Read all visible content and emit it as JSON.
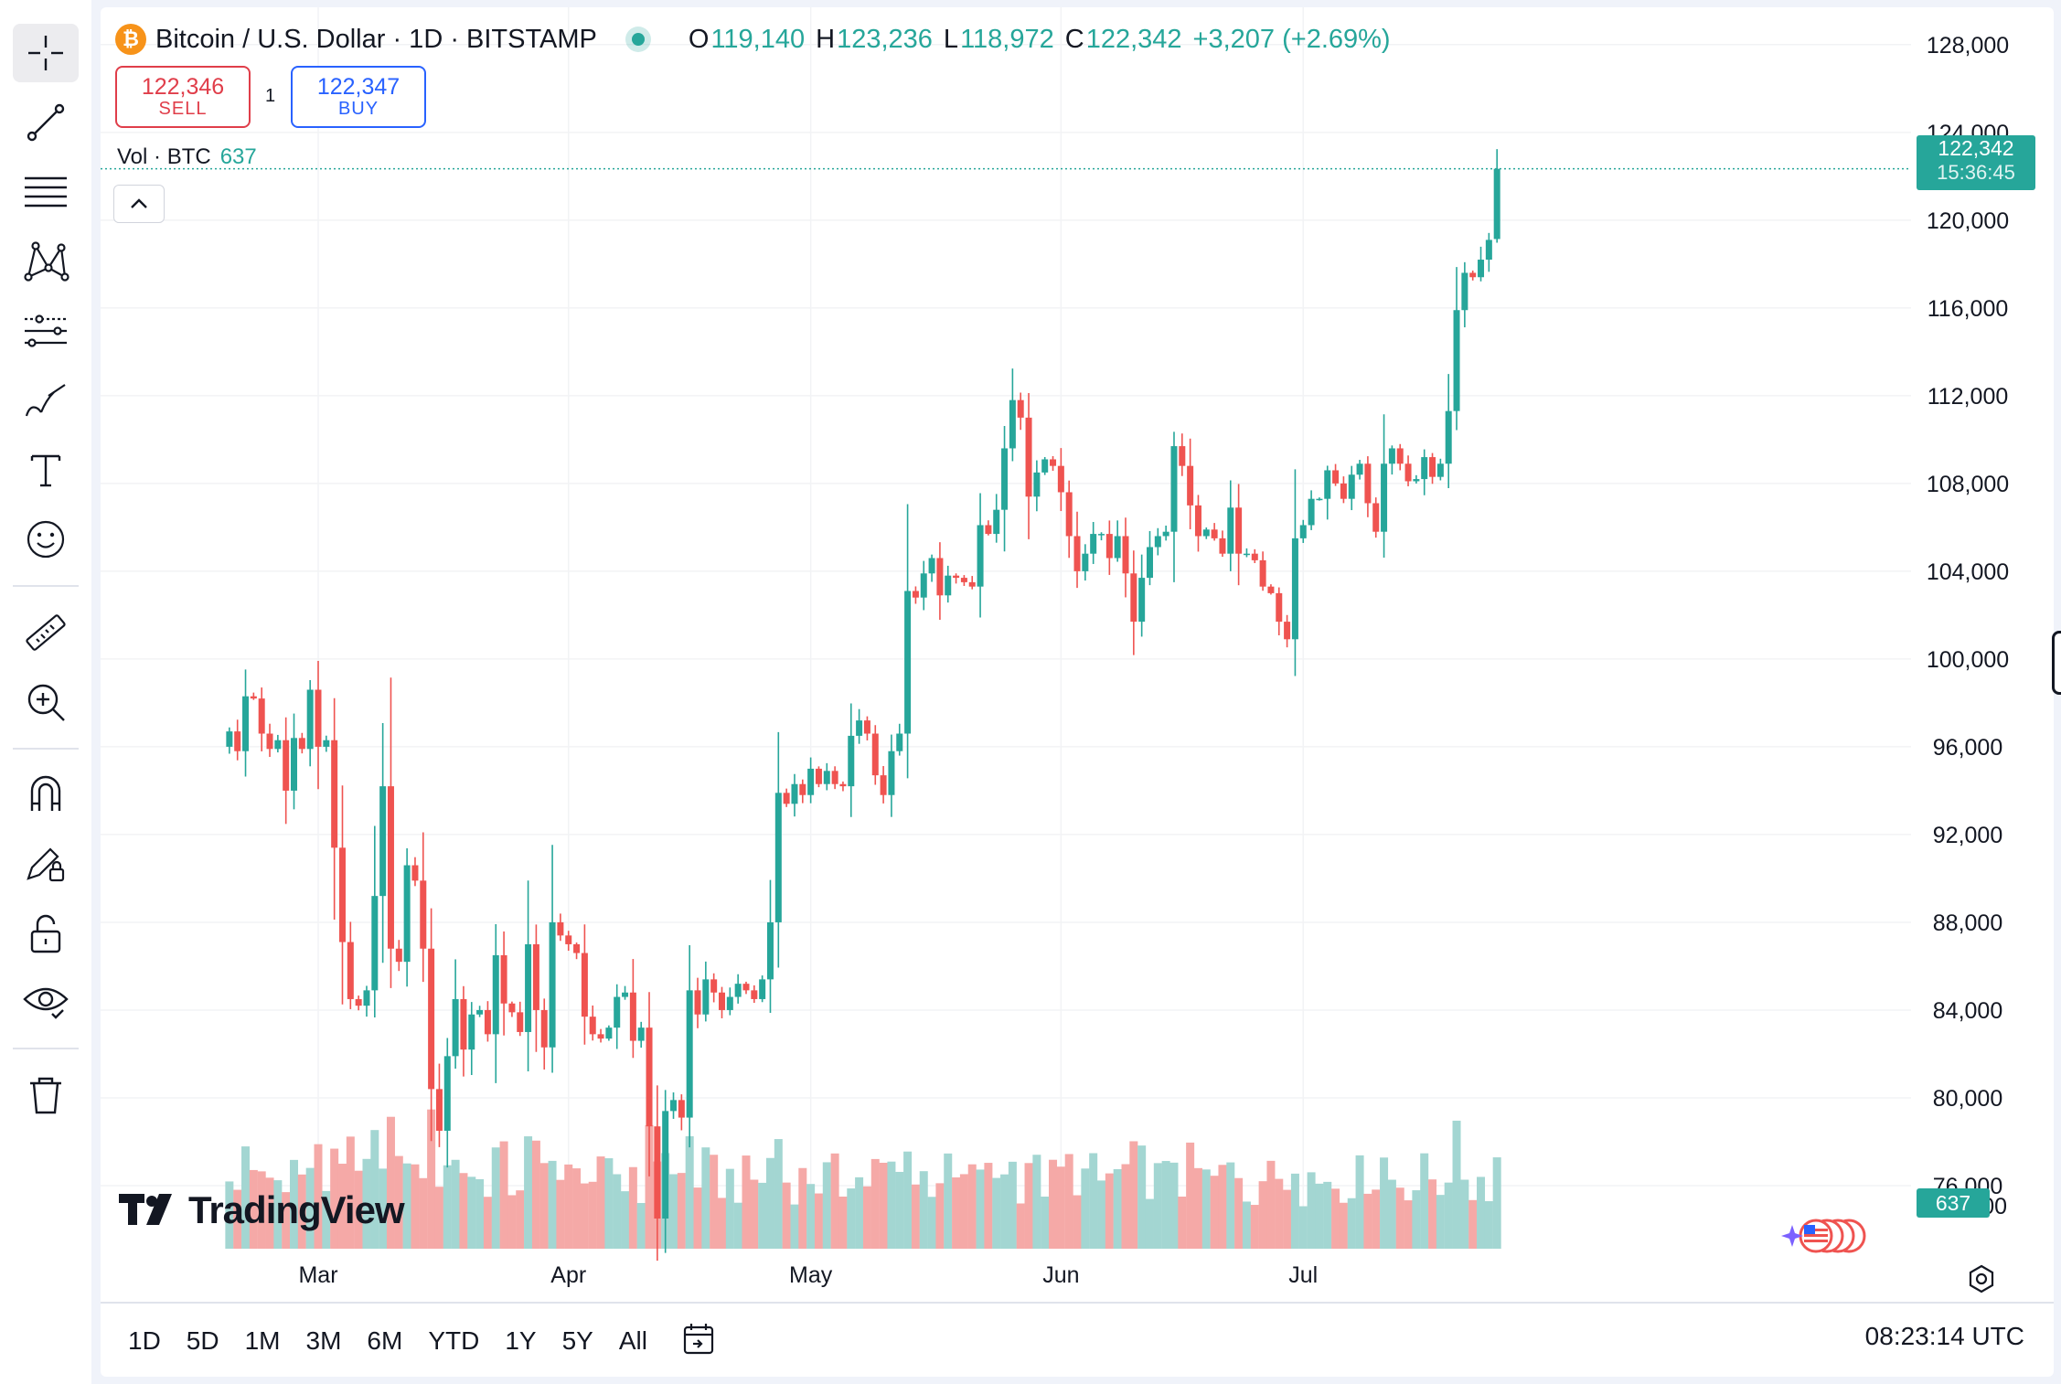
{
  "toolbar": {
    "tools": [
      {
        "name": "crosshair-tool",
        "icon": "crosshair-icon"
      },
      {
        "name": "trend-line-tool",
        "icon": "trend-line-icon"
      },
      {
        "name": "fib-retracement-tool",
        "icon": "horizontal-lines-icon"
      },
      {
        "name": "pattern-tool",
        "icon": "xabcd-pattern-icon"
      },
      {
        "name": "forecast-tool",
        "icon": "prediction-icon"
      },
      {
        "name": "brush-tool",
        "icon": "brush-icon"
      },
      {
        "name": "text-tool",
        "icon": "text-icon"
      },
      {
        "name": "emoji-tool",
        "icon": "smile-icon"
      },
      {
        "name": "measure-tool",
        "icon": "ruler-icon"
      },
      {
        "name": "zoom-tool",
        "icon": "zoom-in-icon"
      },
      {
        "name": "magnet-tool",
        "icon": "magnet-icon"
      },
      {
        "name": "stay-in-drawing-mode-tool",
        "icon": "pencil-lock-icon"
      },
      {
        "name": "lock-drawings-tool",
        "icon": "unlock-icon"
      },
      {
        "name": "hide-drawings-tool",
        "icon": "eye-icon"
      },
      {
        "name": "remove-drawings-tool",
        "icon": "trash-icon"
      }
    ]
  },
  "symbol": {
    "title": "Bitcoin / U.S. Dollar · 1D · BITSTAMP",
    "coin_glyph": "₿",
    "ohlc": {
      "o_label": "O",
      "o": "119,140",
      "h_label": "H",
      "h": "123,236",
      "l_label": "L",
      "l": "118,972",
      "c_label": "C",
      "c": "122,342",
      "change": "+3,207 (+2.69%)"
    }
  },
  "trade": {
    "sell_price": "122,346",
    "sell_label": "SELL",
    "spread": "1",
    "buy_price": "122,347",
    "buy_label": "BUY"
  },
  "volume_legend": {
    "label": "Vol · BTC",
    "value": "637"
  },
  "last_price": {
    "price": "122,342",
    "countdown": "15:36:45"
  },
  "volume_label": "637",
  "watermark": "TradingView",
  "bottom_bar": {
    "ranges": [
      "1D",
      "5D",
      "1M",
      "3M",
      "6M",
      "YTD",
      "1Y",
      "5Y",
      "All"
    ],
    "clock": "08:23:14 UTC"
  },
  "colors": {
    "up": "#26a69a",
    "down": "#ef5350",
    "up_volume": "#a3d6d2",
    "down_volume": "#f5a9a7",
    "grid": "#f2f3f5"
  },
  "chart_data": {
    "type": "candlestick",
    "x_labels": [
      "Mar",
      "Apr",
      "May",
      "Jun",
      "Jul"
    ],
    "y_ticks": [
      128000,
      124000,
      120000,
      116000,
      112000,
      108000,
      104000,
      100000,
      96000,
      92000,
      88000,
      84000,
      80000,
      76000
    ],
    "ylim": [
      72000,
      128700
    ],
    "volume_axis_tick_partial": "00",
    "grid": true,
    "first_date": "2025-02-18",
    "closes": [
      96700,
      95800,
      98300,
      98200,
      96600,
      95900,
      96300,
      94000,
      96400,
      95900,
      98600,
      96000,
      96300,
      91400,
      87100,
      84500,
      84200,
      84900,
      89200,
      94200,
      86800,
      86200,
      90600,
      89900,
      86800,
      80400,
      78500,
      81900,
      84500,
      82200,
      83800,
      84000,
      82900,
      86500,
      84300,
      83900,
      83000,
      87000,
      84000,
      82300,
      88000,
      87400,
      87000,
      86600,
      83700,
      82900,
      82700,
      83200,
      84600,
      84800,
      82600,
      83200,
      78700,
      74500,
      79400,
      79900,
      79100,
      84900,
      83800,
      85400,
      84800,
      84000,
      84600,
      85200,
      84900,
      84500,
      85400,
      88000,
      93900,
      93400,
      94300,
      93800,
      95000,
      94300,
      94900,
      94300,
      94200,
      96500,
      97200,
      96600,
      94700,
      93800,
      95800,
      96600,
      103100,
      102800,
      103900,
      104600,
      102900,
      103800,
      103700,
      103500,
      103300,
      106100,
      105700,
      106800,
      109600,
      111800,
      111000,
      107400,
      108500,
      109100,
      108800,
      107600,
      105600,
      104000,
      104800,
      105700,
      105700,
      104600,
      105600,
      103900,
      101700,
      103700,
      105100,
      105600,
      105800,
      109700,
      108800,
      107000,
      105600,
      105900,
      105500,
      104800,
      106900,
      104800,
      104800,
      104500,
      103300,
      103000,
      101700,
      100900,
      105500,
      106100,
      107300,
      107300,
      108600,
      108000,
      107300,
      108400,
      108900,
      107100,
      105800,
      108900,
      109600,
      108900,
      108100,
      108200,
      109200,
      108300,
      108900,
      111300,
      115900,
      117600,
      117400,
      118200,
      119100,
      122342
    ],
    "ohlc_last_candle": {
      "open": 119140,
      "high": 123236,
      "low": 118972,
      "close": 122342
    },
    "volume_note": "relative volume bars; up volume teal, down volume red"
  }
}
